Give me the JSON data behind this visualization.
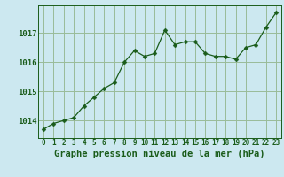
{
  "x": [
    0,
    1,
    2,
    3,
    4,
    5,
    6,
    7,
    8,
    9,
    10,
    11,
    12,
    13,
    14,
    15,
    16,
    17,
    18,
    19,
    20,
    21,
    22,
    23
  ],
  "y": [
    1013.7,
    1013.9,
    1014.0,
    1014.1,
    1014.5,
    1014.8,
    1015.1,
    1015.3,
    1016.0,
    1016.4,
    1016.2,
    1016.3,
    1017.1,
    1016.6,
    1016.7,
    1016.7,
    1016.3,
    1016.2,
    1016.2,
    1016.1,
    1016.5,
    1016.6,
    1017.2,
    1017.7
  ],
  "line_color": "#1a5c1a",
  "marker": "D",
  "marker_size": 2.5,
  "bg_color": "#cce8f0",
  "grid_color": "#99bb99",
  "xlabel": "Graphe pression niveau de la mer (hPa)",
  "xlabel_fontsize": 7.5,
  "ytick_labels": [
    "1014",
    "1015",
    "1016",
    "1017"
  ],
  "ytick_values": [
    1014,
    1015,
    1016,
    1017
  ],
  "ylim": [
    1013.4,
    1017.95
  ],
  "xlim": [
    -0.5,
    23.5
  ],
  "xtick_fontsize": 5.5,
  "ytick_fontsize": 6.5,
  "linewidth": 0.9
}
